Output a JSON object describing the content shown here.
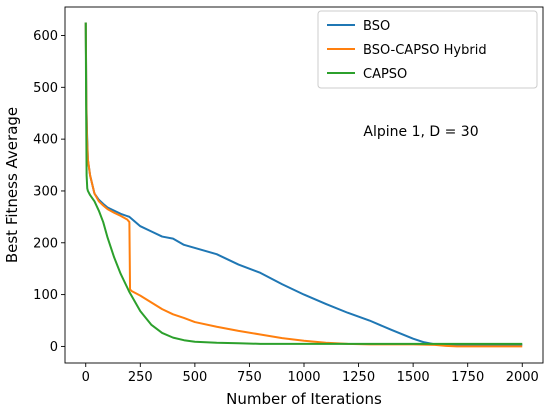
{
  "chart_data": {
    "type": "line",
    "title": "",
    "xlabel": "Number of Iterations",
    "ylabel": "Best Fitness Average",
    "xlim": [
      -95,
      2095
    ],
    "ylim": [
      -32,
      655
    ],
    "x_ticks": [
      0,
      250,
      500,
      750,
      1000,
      1250,
      1500,
      1750,
      2000
    ],
    "y_ticks": [
      0,
      100,
      200,
      300,
      400,
      500,
      600
    ],
    "grid": false,
    "legend": "top-right",
    "annotation": "Alpine 1, D = 30",
    "series": [
      {
        "name": "BSO",
        "color": "#1f77b4",
        "x": [
          0,
          3,
          6,
          10,
          20,
          40,
          60,
          80,
          100,
          130,
          160,
          200,
          250,
          300,
          350,
          400,
          450,
          500,
          600,
          700,
          800,
          900,
          1000,
          1100,
          1200,
          1300,
          1400,
          1500,
          1550,
          1600,
          1620,
          1650,
          1700,
          2000
        ],
        "y": [
          625,
          470,
          410,
          360,
          330,
          295,
          283,
          275,
          268,
          262,
          256,
          250,
          232,
          222,
          212,
          208,
          196,
          190,
          178,
          158,
          142,
          120,
          100,
          82,
          65,
          50,
          32,
          15,
          8,
          4,
          3,
          3,
          3,
          3
        ]
      },
      {
        "name": "BSO-CAPSO Hybrid",
        "color": "#ff7f0e",
        "x": [
          0,
          3,
          6,
          10,
          20,
          40,
          60,
          80,
          100,
          130,
          160,
          190,
          200,
          203,
          210,
          250,
          300,
          350,
          400,
          450,
          500,
          600,
          700,
          800,
          900,
          1000,
          1100,
          1200,
          1300,
          1400,
          1500,
          1600,
          1650,
          1700,
          2000
        ],
        "y": [
          625,
          460,
          400,
          360,
          330,
          295,
          280,
          272,
          265,
          258,
          252,
          245,
          240,
          110,
          107,
          98,
          85,
          72,
          62,
          55,
          47,
          38,
          30,
          23,
          16,
          11,
          7,
          5,
          4,
          4,
          4,
          3,
          1,
          0,
          0
        ]
      },
      {
        "name": "CAPSO",
        "color": "#2ca02c",
        "x": [
          0,
          2,
          4,
          7,
          10,
          20,
          40,
          60,
          80,
          100,
          130,
          160,
          200,
          250,
          300,
          350,
          400,
          450,
          500,
          600,
          700,
          800,
          1000,
          1500,
          2000
        ],
        "y": [
          625,
          450,
          330,
          305,
          300,
          292,
          280,
          262,
          240,
          210,
          172,
          140,
          105,
          68,
          42,
          26,
          17,
          12,
          9,
          7,
          6,
          5,
          5,
          5,
          5
        ]
      }
    ]
  }
}
